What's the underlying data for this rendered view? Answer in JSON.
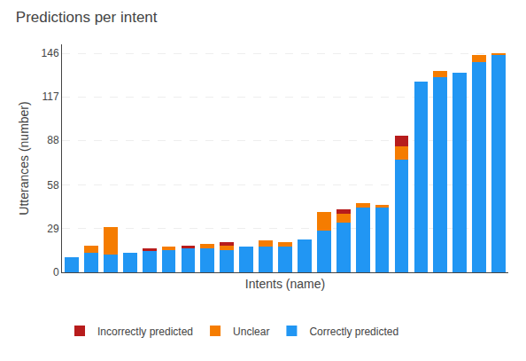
{
  "chart_data": {
    "type": "bar",
    "stacked": true,
    "title": "Predictions per intent",
    "xlabel": "Intents (name)",
    "ylabel": "Utterances (number)",
    "categories": [
      null,
      null,
      null,
      null,
      null,
      null,
      null,
      null,
      null,
      null,
      null,
      null,
      null,
      null,
      null,
      null,
      null,
      null,
      null,
      null,
      null,
      null,
      null
    ],
    "series": [
      {
        "name": "Correctly predicted",
        "color": "#2196f3",
        "values": [
          10,
          13,
          12,
          13,
          14,
          15,
          16,
          16,
          15,
          17,
          17,
          17,
          22,
          28,
          33,
          43,
          43,
          75,
          127,
          130,
          133,
          140,
          145
        ]
      },
      {
        "name": "Unclear",
        "color": "#f57c00",
        "values": [
          0,
          5,
          18,
          0,
          0,
          2,
          0,
          3,
          3,
          0,
          4,
          3,
          0,
          12,
          6,
          3,
          2,
          9,
          0,
          4,
          0,
          5,
          1
        ]
      },
      {
        "name": "Incorrectly predicted",
        "color": "#b71c1c",
        "values": [
          0,
          0,
          0,
          0,
          2,
          0,
          2,
          0,
          2,
          0,
          0,
          0,
          0,
          0,
          3,
          0,
          0,
          7,
          0,
          0,
          0,
          0,
          0
        ]
      }
    ],
    "ylim": [
      0,
      152
    ],
    "yticks": [
      0,
      29,
      58,
      88,
      117,
      146
    ],
    "grid": true,
    "legend": "bottom",
    "tick_labels": "y"
  }
}
